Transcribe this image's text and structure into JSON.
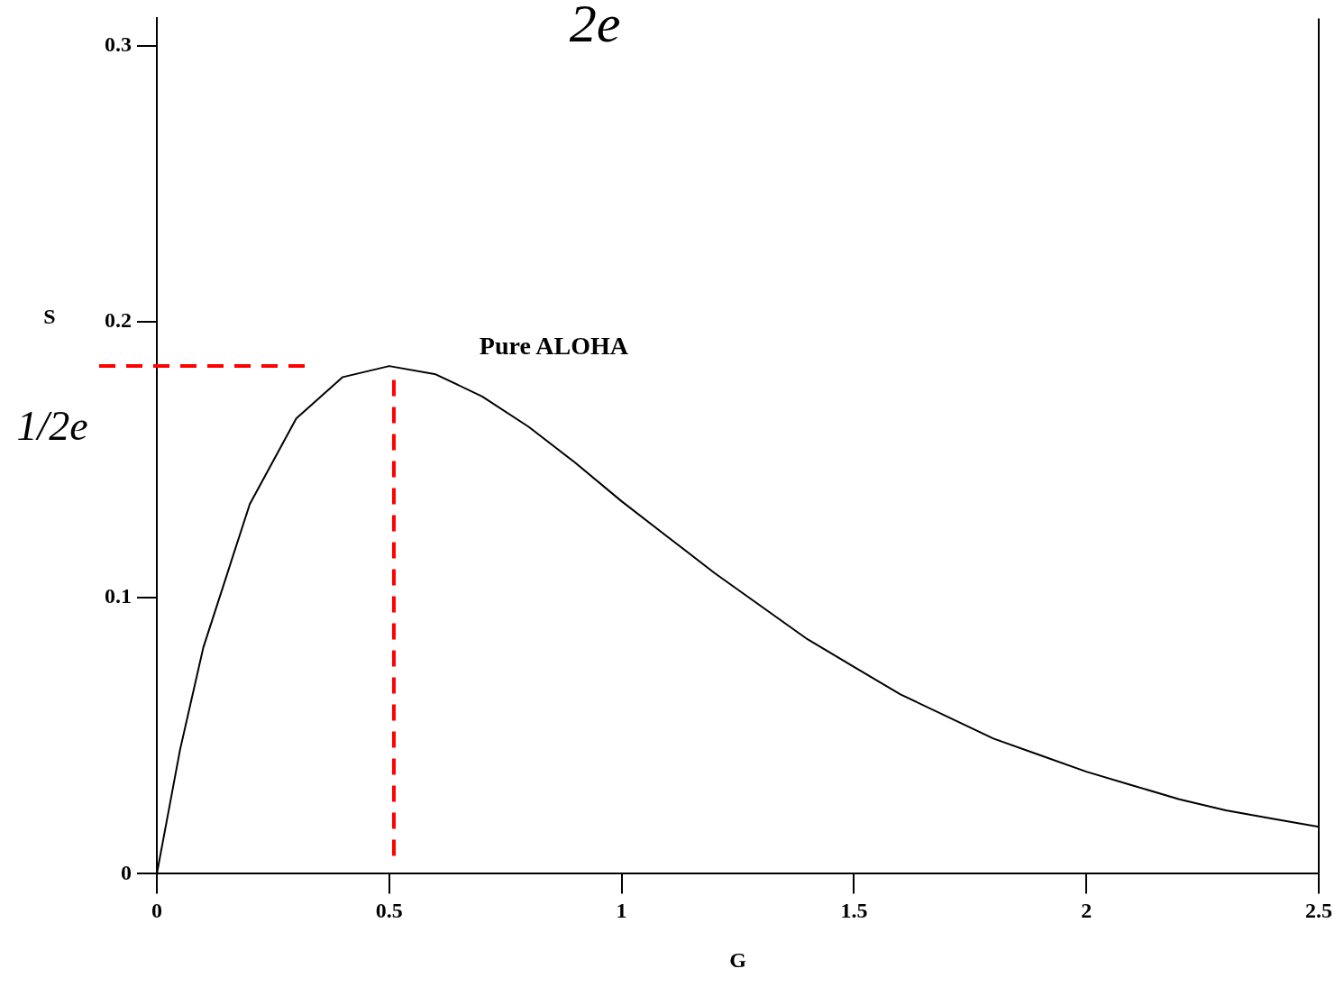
{
  "chart_data": {
    "type": "line",
    "xlabel": "G",
    "ylabel": "S",
    "annotations": [
      "2e"
    ],
    "x": [
      0,
      0.05,
      0.1,
      0.2,
      0.3,
      0.4,
      0.5,
      0.6,
      0.7,
      0.8,
      0.9,
      1.0,
      1.1,
      1.2,
      1.3,
      1.4,
      1.5,
      1.6,
      1.7,
      1.8,
      1.9,
      2.0,
      2.1,
      2.2,
      2.3,
      2.4,
      2.5
    ],
    "series": [
      {
        "name": "Pure ALOHA",
        "color": "#000000",
        "values": [
          0,
          0.045,
          0.082,
          0.134,
          0.165,
          0.18,
          0.184,
          0.181,
          0.173,
          0.162,
          0.149,
          0.135,
          0.122,
          0.109,
          0.097,
          0.085,
          0.075,
          0.065,
          0.057,
          0.049,
          0.043,
          0.037,
          0.032,
          0.027,
          0.023,
          0.02,
          0.017
        ]
      }
    ],
    "xlim": [
      0,
      2.5
    ],
    "xticks": [
      0,
      0.5,
      1,
      1.5,
      2,
      2.5
    ],
    "ylim": [
      0,
      0.31
    ],
    "yticks": [
      0,
      0.1,
      0.2,
      0.3
    ],
    "ref_lines": [
      {
        "axis": "y",
        "value": 0.184,
        "label": "1/2e",
        "color": "#ff0000",
        "line_style": "dashed"
      },
      {
        "axis": "x",
        "value": 0.51,
        "label": null,
        "color": "#ff0000",
        "line_style": "dashed"
      }
    ],
    "grid": false,
    "legend": false,
    "marker": "none",
    "line_style": "solid"
  }
}
